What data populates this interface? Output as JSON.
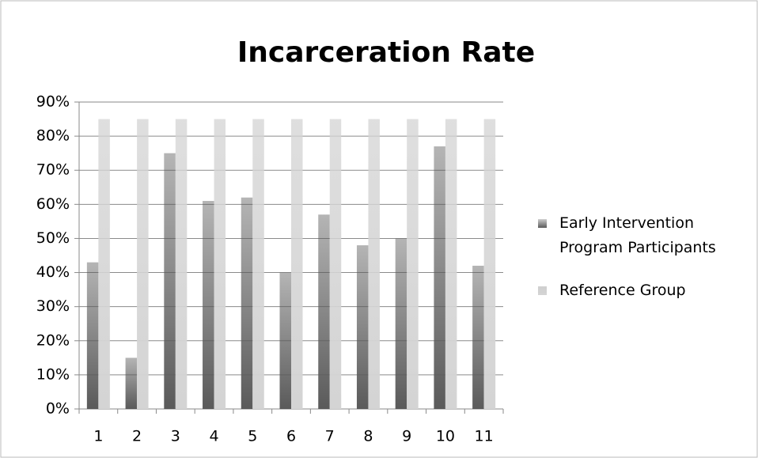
{
  "chart_data": {
    "type": "bar",
    "title": "Incarceration Rate",
    "categories": [
      "1",
      "2",
      "3",
      "4",
      "5",
      "6",
      "7",
      "8",
      "9",
      "10",
      "11"
    ],
    "series": [
      {
        "name": "Early Intervention Program Participants",
        "color": "#5a5a5a",
        "values": [
          43,
          15,
          75,
          61,
          62,
          40,
          57,
          48,
          50,
          77,
          42
        ]
      },
      {
        "name": "Reference Group",
        "color": "#d4d4d4",
        "values": [
          85,
          85,
          85,
          85,
          85,
          85,
          85,
          85,
          85,
          85,
          85
        ]
      }
    ],
    "ylim": [
      0,
      90
    ],
    "yticks": [
      {
        "value": 0,
        "label": "0%"
      },
      {
        "value": 10,
        "label": "10%"
      },
      {
        "value": 20,
        "label": "20%"
      },
      {
        "value": 30,
        "label": "30%"
      },
      {
        "value": 40,
        "label": "40%"
      },
      {
        "value": 50,
        "label": "50%"
      },
      {
        "value": 60,
        "label": "60%"
      },
      {
        "value": 70,
        "label": "70%"
      },
      {
        "value": 80,
        "label": "80%"
      },
      {
        "value": 90,
        "label": "90%"
      }
    ],
    "grid": true,
    "legend": "right"
  }
}
